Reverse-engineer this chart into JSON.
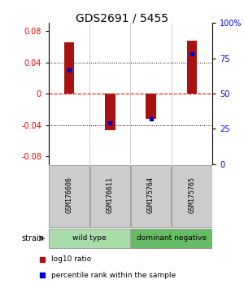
{
  "title": "GDS2691 / 5455",
  "samples": [
    "GSM176606",
    "GSM176611",
    "GSM175764",
    "GSM175765"
  ],
  "log10_ratios": [
    0.065,
    -0.047,
    -0.032,
    0.068
  ],
  "percentile_ranks": [
    67,
    29,
    32,
    78
  ],
  "groups": [
    {
      "name": "wild type",
      "samples": [
        0,
        1
      ],
      "color": "#aaddaa"
    },
    {
      "name": "dominant negative",
      "samples": [
        2,
        3
      ],
      "color": "#66bb66"
    }
  ],
  "group_label": "strain",
  "ylim": [
    -0.09,
    0.09
  ],
  "yticks_left": [
    -0.08,
    -0.04,
    0,
    0.04,
    0.08
  ],
  "yticks_left_labels": [
    "-0.08",
    "-0.04",
    "0",
    "0.04",
    "0.08"
  ],
  "yticks_right_pct": [
    0,
    25,
    50,
    75,
    100
  ],
  "yticks_right_labels": [
    "0",
    "25",
    "50",
    "75",
    "100%"
  ],
  "bar_color": "#aa1111",
  "dot_color": "#0000cc",
  "background_color": "#ffffff",
  "bar_width": 0.25,
  "legend_items": [
    {
      "label": "log10 ratio",
      "color": "#aa1111"
    },
    {
      "label": "percentile rank within the sample",
      "color": "#0000cc"
    }
  ]
}
